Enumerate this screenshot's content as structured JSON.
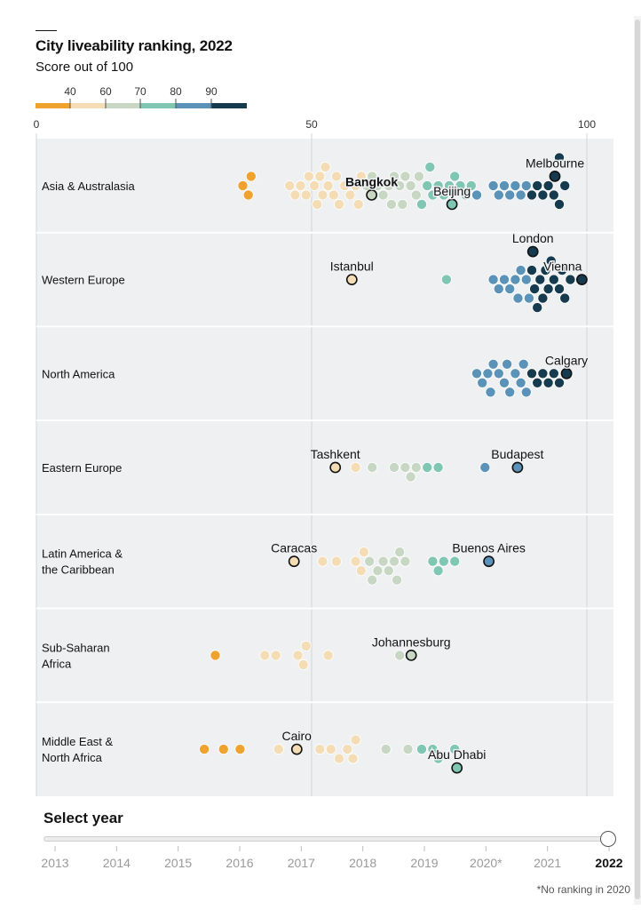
{
  "title": "City liveability ranking, 2022",
  "subtitle": "Score out of 100",
  "legend": {
    "labels": [
      "40",
      "60",
      "70",
      "80",
      "90"
    ],
    "colors": [
      "#f0a22e",
      "#f4dcb4",
      "#c7d7c3",
      "#7fc6b3",
      "#5b93b8",
      "#173b4e"
    ]
  },
  "slider": {
    "title": "Select year",
    "years": [
      "2013",
      "2014",
      "2015",
      "2016",
      "2017",
      "2018",
      "2019",
      "2020*",
      "2021",
      "2022"
    ],
    "selected": "2022"
  },
  "footnote": "*No ranking in 2020",
  "chart_data": {
    "type": "scatter",
    "title": "City liveability ranking, 2022",
    "subtitle": "Score out of 100",
    "xlim": [
      0,
      100
    ],
    "xticks": [
      "0",
      "50",
      "100"
    ],
    "grid": true,
    "categories": [
      "Asia & Australasia",
      "Western Europe",
      "North America",
      "Eastern Europe",
      "Latin America & the Caribbean",
      "Sub-Saharan Africa",
      "Middle East & North Africa"
    ],
    "regions": [
      {
        "name": "Asia & Australasia",
        "label_lines": [
          "Asia & Australasia"
        ],
        "scores": [
          37.5,
          38.5,
          39,
          46,
          47,
          48,
          49,
          49.5,
          50.5,
          51,
          51.5,
          52,
          52.5,
          53,
          54,
          54.5,
          55,
          56,
          57,
          58,
          58.5,
          59,
          60,
          61,
          62,
          63,
          64,
          64.5,
          65,
          66,
          66.5,
          67,
          68,
          69,
          69.5,
          70,
          71,
          71.5,
          72,
          73,
          74,
          75,
          76,
          77,
          78,
          79,
          80,
          83,
          84,
          85,
          86,
          87,
          88,
          89,
          90,
          91,
          92,
          93,
          94,
          95,
          95,
          96
        ],
        "labeled": [
          {
            "name": "Bangkok",
            "score": 60.9,
            "bold": true
          },
          {
            "name": "Beijing",
            "score": 75.5,
            "bold": false
          },
          {
            "name": "Melbourne",
            "score": 94.2,
            "bold": false
          }
        ]
      },
      {
        "name": "Western Europe",
        "label_lines": [
          "Western Europe"
        ],
        "scores": [
          74.5,
          83,
          84,
          85,
          86,
          87,
          87.5,
          88,
          89,
          89.5,
          90,
          90.5,
          91,
          91.5,
          92,
          92.5,
          93,
          93.5,
          94,
          95,
          95.5,
          96,
          97
        ],
        "labeled": [
          {
            "name": "Istanbul",
            "score": 57.3,
            "bold": false
          },
          {
            "name": "Vienna",
            "score": 99.1,
            "bold": false
          },
          {
            "name": "London",
            "score": 90.2,
            "bold": false
          }
        ]
      },
      {
        "name": "North America",
        "label_lines": [
          "North America"
        ],
        "scores": [
          80,
          81,
          82,
          82.5,
          83,
          84,
          85,
          85.5,
          86,
          87,
          88,
          88.5,
          89,
          90,
          91,
          92,
          93,
          94,
          95
        ],
        "labeled": [
          {
            "name": "Calgary",
            "score": 96.3,
            "bold": false
          }
        ]
      },
      {
        "name": "Eastern Europe",
        "label_lines": [
          "Eastern Europe"
        ],
        "scores": [
          58,
          61,
          65,
          67,
          68,
          69,
          71,
          73,
          81.5
        ],
        "labeled": [
          {
            "name": "Tashkent",
            "score": 54.3,
            "bold": false
          },
          {
            "name": "Budapest",
            "score": 87.4,
            "bold": false
          }
        ]
      },
      {
        "name": "Latin America & the Caribbean",
        "label_lines": [
          "Latin America &",
          "the Caribbean"
        ],
        "scores": [
          52,
          54.5,
          58,
          59,
          59.5,
          60.5,
          61,
          62,
          63,
          64,
          65,
          65.5,
          66,
          67,
          72,
          73,
          74,
          76
        ],
        "labeled": [
          {
            "name": "Caracas",
            "score": 46.8,
            "bold": false
          },
          {
            "name": "Buenos Aires",
            "score": 82.2,
            "bold": false
          }
        ]
      },
      {
        "name": "Sub-Saharan Africa",
        "label_lines": [
          "Sub-Saharan",
          "Africa"
        ],
        "scores": [
          32.5,
          41.5,
          43.5,
          47.5,
          48.5,
          49,
          53,
          66
        ],
        "labeled": [
          {
            "name": "Johannesburg",
            "score": 68.1,
            "bold": false
          }
        ]
      },
      {
        "name": "Middle East & North Africa",
        "label_lines": [
          "Middle East &",
          "North Africa"
        ],
        "scores": [
          30.5,
          34,
          37,
          44,
          51.5,
          53.5,
          55,
          56.5,
          57.5,
          58,
          63.5,
          67.5,
          70,
          72,
          73,
          76
        ],
        "labeled": [
          {
            "name": "Cairo",
            "score": 47.3,
            "bold": false
          },
          {
            "name": "Abu Dhabi",
            "score": 76.4,
            "bold": false
          }
        ]
      }
    ]
  }
}
